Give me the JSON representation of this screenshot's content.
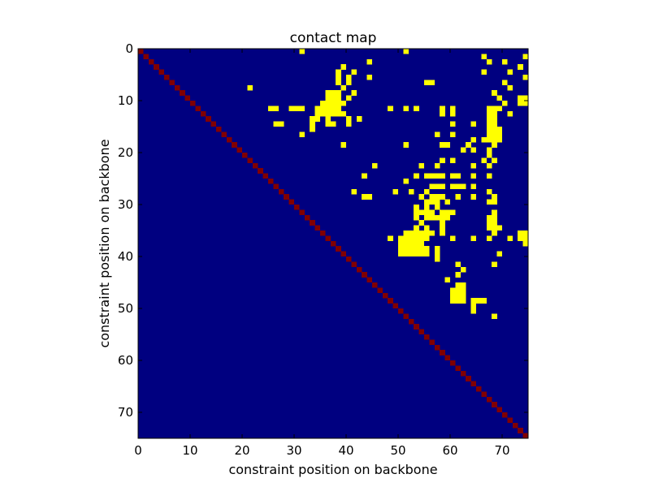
{
  "chart_data": {
    "type": "heatmap",
    "title": "contact map",
    "xlabel": "constraint position on backbone",
    "ylabel": "constraint position on backbone",
    "n": 75,
    "xlim": [
      0,
      75
    ],
    "ylim": [
      75,
      0
    ],
    "xticks": [
      0,
      10,
      20,
      30,
      40,
      50,
      60,
      70
    ],
    "yticks": [
      0,
      10,
      20,
      30,
      40,
      50,
      60,
      70
    ],
    "grid": false,
    "legend": "none",
    "colors": {
      "background": "#000080",
      "contact": "#ffff00",
      "diagonal": "#800000",
      "frame": "#000000"
    },
    "diagonal": "cells (i, i) for i = 0..74",
    "contacts": [
      [
        0,
        31
      ],
      [
        0,
        51
      ],
      [
        1,
        66
      ],
      [
        1,
        74
      ],
      [
        2,
        44
      ],
      [
        2,
        67
      ],
      [
        2,
        70
      ],
      [
        3,
        39
      ],
      [
        3,
        73
      ],
      [
        4,
        38
      ],
      [
        4,
        41
      ],
      [
        4,
        66
      ],
      [
        4,
        71
      ],
      [
        5,
        38
      ],
      [
        5,
        40
      ],
      [
        5,
        44
      ],
      [
        5,
        74
      ],
      [
        6,
        38
      ],
      [
        6,
        40
      ],
      [
        6,
        55
      ],
      [
        6,
        56
      ],
      [
        6,
        70
      ],
      [
        7,
        21
      ],
      [
        7,
        39
      ],
      [
        7,
        71
      ],
      [
        8,
        36
      ],
      [
        8,
        37
      ],
      [
        8,
        38
      ],
      [
        8,
        41
      ],
      [
        8,
        68
      ],
      [
        9,
        36
      ],
      [
        9,
        37
      ],
      [
        9,
        38
      ],
      [
        9,
        40
      ],
      [
        9,
        69
      ],
      [
        9,
        73
      ],
      [
        9,
        74
      ],
      [
        10,
        35
      ],
      [
        10,
        36
      ],
      [
        10,
        37
      ],
      [
        10,
        38
      ],
      [
        10,
        39
      ],
      [
        10,
        70
      ],
      [
        10,
        73
      ],
      [
        10,
        74
      ],
      [
        11,
        25
      ],
      [
        11,
        26
      ],
      [
        11,
        29
      ],
      [
        11,
        30
      ],
      [
        11,
        31
      ],
      [
        11,
        34
      ],
      [
        11,
        35
      ],
      [
        11,
        36
      ],
      [
        11,
        37
      ],
      [
        11,
        38
      ],
      [
        11,
        48
      ],
      [
        11,
        51
      ],
      [
        11,
        53
      ],
      [
        11,
        58
      ],
      [
        11,
        60
      ],
      [
        11,
        67
      ],
      [
        11,
        68
      ],
      [
        11,
        69
      ],
      [
        12,
        34
      ],
      [
        12,
        35
      ],
      [
        12,
        36
      ],
      [
        12,
        37
      ],
      [
        12,
        38
      ],
      [
        12,
        39
      ],
      [
        12,
        58
      ],
      [
        12,
        60
      ],
      [
        12,
        67
      ],
      [
        12,
        68
      ],
      [
        12,
        71
      ],
      [
        13,
        33
      ],
      [
        13,
        34
      ],
      [
        13,
        36
      ],
      [
        13,
        40
      ],
      [
        13,
        42
      ],
      [
        13,
        67
      ],
      [
        13,
        68
      ],
      [
        14,
        26
      ],
      [
        14,
        27
      ],
      [
        14,
        33
      ],
      [
        14,
        36
      ],
      [
        14,
        37
      ],
      [
        14,
        40
      ],
      [
        14,
        60
      ],
      [
        14,
        64
      ],
      [
        14,
        67
      ],
      [
        14,
        68
      ],
      [
        15,
        33
      ],
      [
        15,
        67
      ],
      [
        15,
        68
      ],
      [
        15,
        69
      ],
      [
        16,
        31
      ],
      [
        16,
        57
      ],
      [
        16,
        60
      ],
      [
        16,
        67
      ],
      [
        16,
        68
      ],
      [
        16,
        69
      ],
      [
        17,
        64
      ],
      [
        17,
        66
      ],
      [
        17,
        67
      ],
      [
        17,
        68
      ],
      [
        17,
        69
      ],
      [
        18,
        39
      ],
      [
        18,
        51
      ],
      [
        18,
        58
      ],
      [
        18,
        59
      ],
      [
        18,
        63
      ],
      [
        18,
        68
      ],
      [
        19,
        62
      ],
      [
        19,
        64
      ],
      [
        19,
        67
      ],
      [
        20,
        67
      ],
      [
        21,
        58
      ],
      [
        21,
        60
      ],
      [
        21,
        66
      ],
      [
        21,
        68
      ],
      [
        22,
        45
      ],
      [
        22,
        54
      ],
      [
        22,
        57
      ],
      [
        22,
        64
      ],
      [
        22,
        67
      ],
      [
        24,
        43
      ],
      [
        24,
        53
      ],
      [
        24,
        55
      ],
      [
        24,
        56
      ],
      [
        24,
        57
      ],
      [
        24,
        58
      ],
      [
        24,
        60
      ],
      [
        24,
        61
      ],
      [
        24,
        64
      ],
      [
        24,
        67
      ],
      [
        25,
        51
      ],
      [
        26,
        56
      ],
      [
        26,
        57
      ],
      [
        26,
        58
      ],
      [
        26,
        60
      ],
      [
        26,
        61
      ],
      [
        26,
        62
      ],
      [
        26,
        64
      ],
      [
        27,
        41
      ],
      [
        27,
        49
      ],
      [
        27,
        52
      ],
      [
        27,
        55
      ],
      [
        27,
        67
      ],
      [
        28,
        43
      ],
      [
        28,
        44
      ],
      [
        28,
        54
      ],
      [
        28,
        56
      ],
      [
        28,
        57
      ],
      [
        28,
        58
      ],
      [
        28,
        61
      ],
      [
        28,
        64
      ],
      [
        28,
        68
      ],
      [
        29,
        55
      ],
      [
        29,
        56
      ],
      [
        29,
        57
      ],
      [
        29,
        59
      ],
      [
        29,
        67
      ],
      [
        29,
        68
      ],
      [
        30,
        53
      ],
      [
        30,
        55
      ],
      [
        30,
        57
      ],
      [
        31,
        53
      ],
      [
        31,
        54
      ],
      [
        31,
        55
      ],
      [
        31,
        56
      ],
      [
        31,
        58
      ],
      [
        31,
        59
      ],
      [
        31,
        60
      ],
      [
        31,
        68
      ],
      [
        32,
        53
      ],
      [
        32,
        55
      ],
      [
        32,
        56
      ],
      [
        32,
        57
      ],
      [
        32,
        58
      ],
      [
        32,
        59
      ],
      [
        32,
        67
      ],
      [
        32,
        68
      ],
      [
        33,
        54
      ],
      [
        33,
        58
      ],
      [
        33,
        67
      ],
      [
        33,
        68
      ],
      [
        34,
        53
      ],
      [
        34,
        55
      ],
      [
        34,
        58
      ],
      [
        34,
        67
      ],
      [
        34,
        68
      ],
      [
        34,
        69
      ],
      [
        35,
        51
      ],
      [
        35,
        52
      ],
      [
        35,
        53
      ],
      [
        35,
        54
      ],
      [
        35,
        55
      ],
      [
        35,
        56
      ],
      [
        35,
        58
      ],
      [
        35,
        68
      ],
      [
        35,
        73
      ],
      [
        35,
        74
      ],
      [
        36,
        48
      ],
      [
        36,
        50
      ],
      [
        36,
        51
      ],
      [
        36,
        52
      ],
      [
        36,
        53
      ],
      [
        36,
        54
      ],
      [
        36,
        55
      ],
      [
        36,
        60
      ],
      [
        36,
        64
      ],
      [
        36,
        67
      ],
      [
        36,
        71
      ],
      [
        36,
        73
      ],
      [
        36,
        74
      ],
      [
        37,
        50
      ],
      [
        37,
        51
      ],
      [
        37,
        52
      ],
      [
        37,
        53
      ],
      [
        37,
        54
      ],
      [
        37,
        74
      ],
      [
        38,
        50
      ],
      [
        38,
        51
      ],
      [
        38,
        52
      ],
      [
        38,
        53
      ],
      [
        38,
        54
      ],
      [
        38,
        55
      ],
      [
        38,
        57
      ],
      [
        39,
        50
      ],
      [
        39,
        51
      ],
      [
        39,
        52
      ],
      [
        39,
        53
      ],
      [
        39,
        54
      ],
      [
        39,
        55
      ],
      [
        39,
        57
      ],
      [
        39,
        69
      ],
      [
        40,
        57
      ],
      [
        41,
        61
      ],
      [
        41,
        68
      ],
      [
        42,
        62
      ],
      [
        43,
        61
      ],
      [
        44,
        59
      ],
      [
        45,
        61
      ],
      [
        45,
        62
      ],
      [
        46,
        60
      ],
      [
        46,
        61
      ],
      [
        46,
        62
      ],
      [
        47,
        60
      ],
      [
        47,
        61
      ],
      [
        47,
        62
      ],
      [
        48,
        60
      ],
      [
        48,
        61
      ],
      [
        48,
        62
      ],
      [
        48,
        64
      ],
      [
        48,
        65
      ],
      [
        48,
        66
      ],
      [
        49,
        64
      ],
      [
        50,
        64
      ],
      [
        51,
        68
      ]
    ]
  }
}
